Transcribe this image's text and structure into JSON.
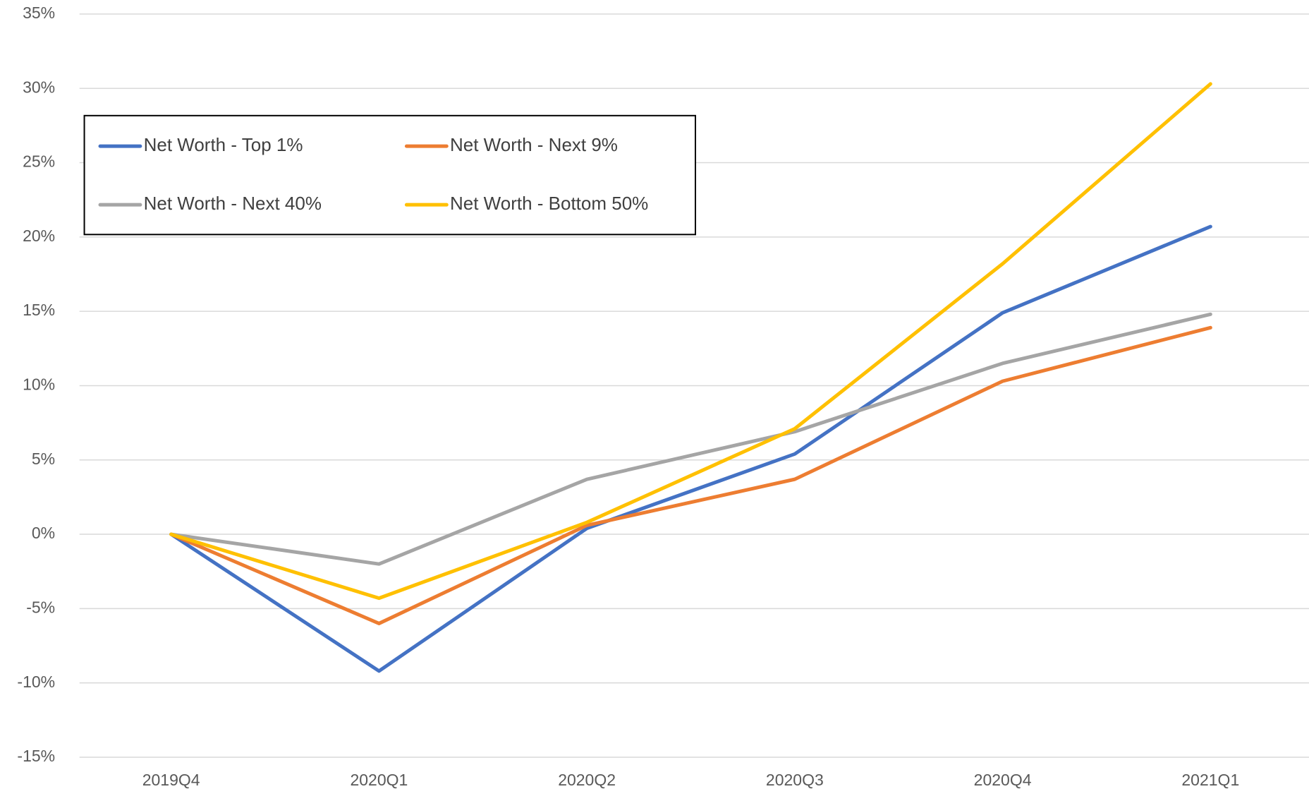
{
  "chart_data": {
    "type": "line",
    "categories": [
      "2019Q4",
      "2020Q1",
      "2020Q2",
      "2020Q3",
      "2020Q4",
      "2021Q1"
    ],
    "series": [
      {
        "name": "Net Worth - Top 1%",
        "color": "#4472c4",
        "values": [
          0,
          -9.2,
          0.4,
          5.4,
          14.9,
          20.7
        ]
      },
      {
        "name": "Net Worth - Next 9%",
        "color": "#ed7d31",
        "values": [
          0,
          -6.0,
          0.6,
          3.7,
          10.3,
          13.9
        ]
      },
      {
        "name": "Net Worth - Next 40%",
        "color": "#a5a5a5",
        "values": [
          0,
          -2.0,
          3.7,
          6.9,
          11.5,
          14.8
        ]
      },
      {
        "name": "Net Worth - Bottom 50%",
        "color": "#ffc000",
        "values": [
          0,
          -4.3,
          0.8,
          7.1,
          18.2,
          30.3
        ]
      }
    ],
    "ylim": [
      -15,
      35
    ],
    "yticks": [
      {
        "value": -15,
        "label": "-15%"
      },
      {
        "value": -10,
        "label": "-10%"
      },
      {
        "value": -5,
        "label": "-5%"
      },
      {
        "value": 0,
        "label": "0%"
      },
      {
        "value": 5,
        "label": "5%"
      },
      {
        "value": 10,
        "label": "10%"
      },
      {
        "value": 15,
        "label": "15%"
      },
      {
        "value": 20,
        "label": "20%"
      },
      {
        "value": 25,
        "label": "25%"
      },
      {
        "value": 30,
        "label": "30%"
      },
      {
        "value": 35,
        "label": "35%"
      }
    ],
    "grid": true,
    "legend": "upper left"
  }
}
